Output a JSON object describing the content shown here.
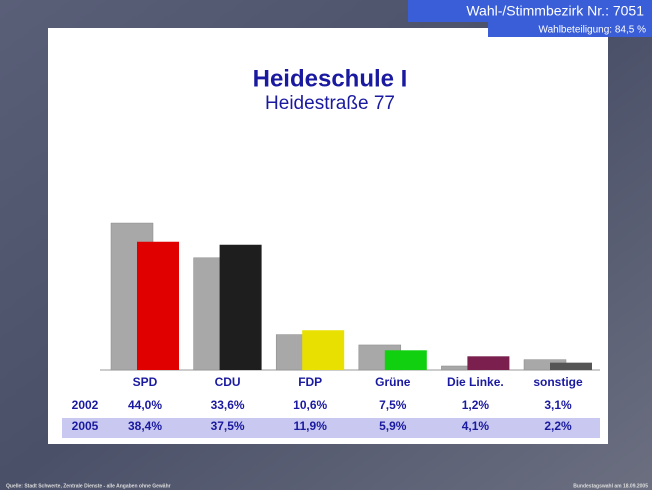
{
  "header": {
    "district": "Wahl-/Stimmbezirk Nr.:  7051",
    "turnout": "Wahlbeteiligung:  84,5 %"
  },
  "footer": {
    "source": "Quelle: Stadt Schwerte, Zentrale Dienste - alle Angaben ohne Gewähr",
    "election": "Bundestagswahl am 18.09.2005"
  },
  "chart_data": {
    "type": "bar",
    "title": "Heideschule I",
    "subtitle": "Heidestraße 77",
    "categories": [
      "SPD",
      "CDU",
      "FDP",
      "Grüne",
      "Die Linke.",
      "sonstige"
    ],
    "series": [
      {
        "name": "2002",
        "color": "#a8a8a8",
        "values": [
          44.0,
          33.6,
          10.6,
          7.5,
          1.2,
          3.1
        ],
        "value_labels": [
          "44,0%",
          "33,6%",
          "10,6%",
          "7,5%",
          "1,2%",
          "3,1%"
        ]
      },
      {
        "name": "2005",
        "colors": [
          "#e00000",
          "#1e1e1e",
          "#e8e000",
          "#10d010",
          "#7a1f4e",
          "#555555"
        ],
        "values": [
          38.4,
          37.5,
          11.9,
          5.9,
          4.1,
          2.2
        ],
        "value_labels": [
          "38,4%",
          "37,5%",
          "11,9%",
          "5,9%",
          "4,1%",
          "2,2%"
        ]
      }
    ]
  }
}
